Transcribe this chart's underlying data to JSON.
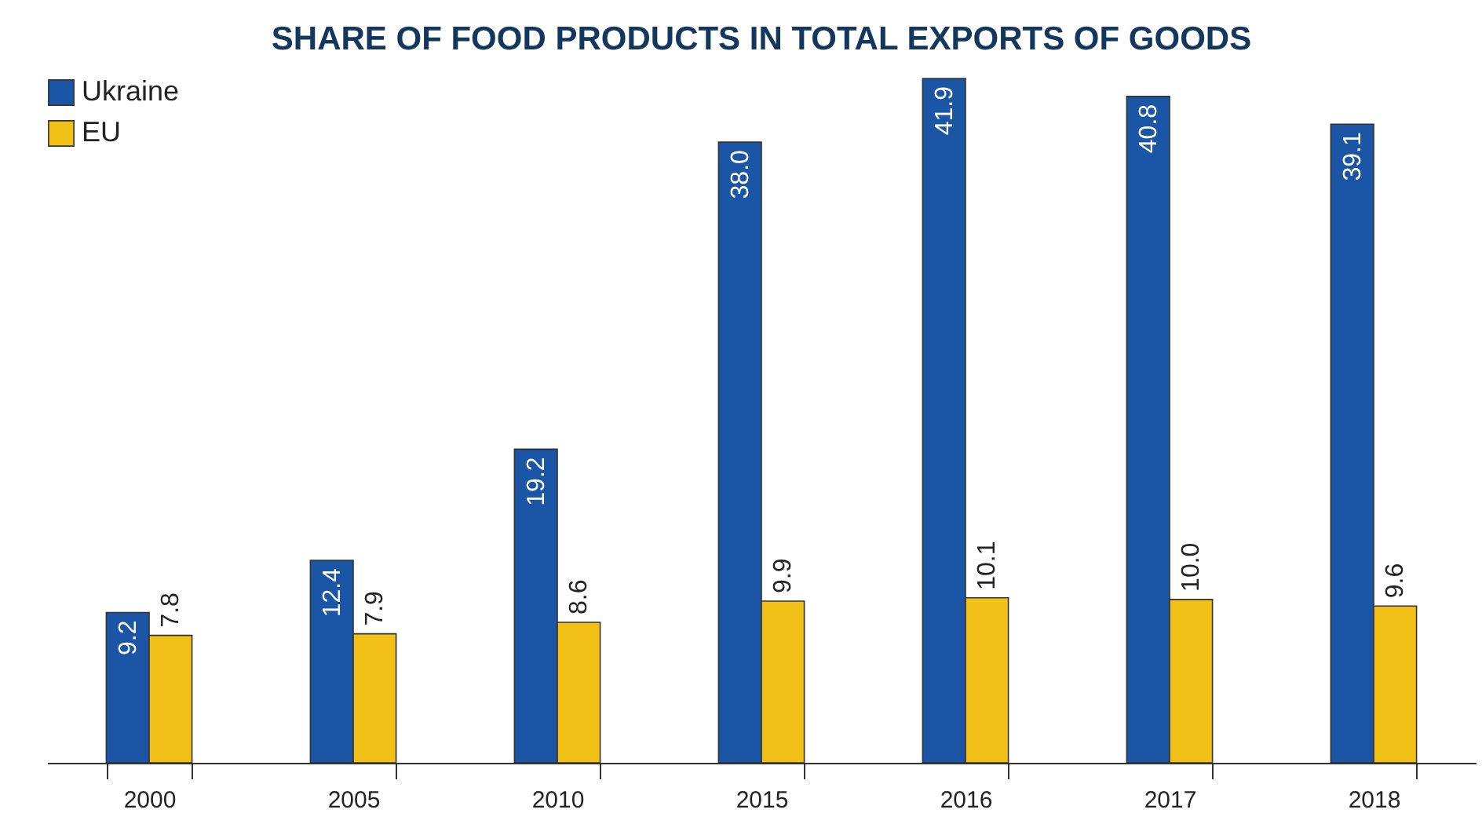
{
  "chart_data": {
    "type": "bar",
    "title": "SHARE OF FOOD PRODUCTS IN TOTAL EXPORTS OF GOODS",
    "categories": [
      "2000",
      "2005",
      "2010",
      "2015",
      "2016",
      "2017",
      "2018"
    ],
    "series": [
      {
        "name": "Ukraine",
        "color": "#1a55a6",
        "values": [
          9.2,
          12.4,
          19.2,
          38.0,
          41.9,
          40.8,
          39.1
        ],
        "value_labels": [
          "9.2",
          "12.4",
          "19.2",
          "38.0",
          "41.9",
          "40.8",
          "39.1"
        ]
      },
      {
        "name": "EU",
        "color": "#f2c118",
        "values": [
          7.8,
          7.9,
          8.6,
          9.9,
          10.1,
          10.0,
          9.6
        ],
        "value_labels": [
          "7.8",
          "7.9",
          "8.6",
          "9.9",
          "10.1",
          "10.0",
          "9.6"
        ]
      }
    ],
    "grid": false,
    "legend": "top left",
    "tick_labels": "x"
  }
}
